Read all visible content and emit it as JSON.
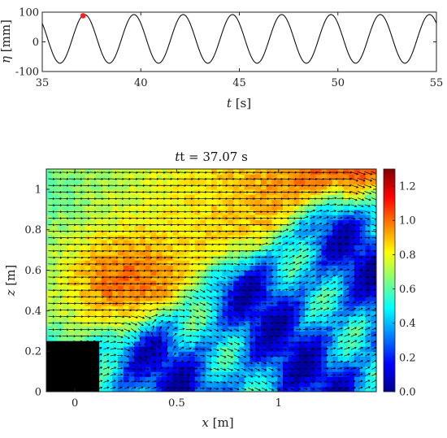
{
  "chart_data": [
    {
      "type": "line",
      "xlabel_var": "t",
      "xlabel_unit": "[s]",
      "ylabel_var": "η",
      "ylabel_unit": "[mm]",
      "xlim": [
        35,
        55
      ],
      "ylim": [
        -100,
        100
      ],
      "x_ticks": [
        "35",
        "40",
        "45",
        "50",
        "55"
      ],
      "y_ticks": [
        "-100",
        "0",
        "100"
      ],
      "wave": {
        "period_s": 2.5,
        "crest_mm": 92,
        "trough_mm": -72,
        "first_crest_t": 37.15
      },
      "marker": {
        "t": 37.07,
        "eta": 88,
        "color": "#ff2020"
      }
    },
    {
      "type": "heatmap",
      "title_prefix": "t = ",
      "title_value": "37.07 s",
      "xlabel_var": "x",
      "xlabel_unit": "[m]",
      "ylabel_var": "z",
      "ylabel_unit": "[m]",
      "xlim": [
        -0.14,
        1.48
      ],
      "ylim": [
        0,
        1.1
      ],
      "x_ticks": [
        "0",
        "0.5",
        "1"
      ],
      "y_ticks": [
        "0",
        "0.2",
        "0.4",
        "0.6",
        "0.8",
        "1"
      ],
      "colorbar": {
        "range": [
          0,
          1.3
        ],
        "ticks": [
          "0.0",
          "0.2",
          "0.4",
          "0.6",
          "0.8",
          "1.0",
          "1.2"
        ],
        "colormap": "jet"
      },
      "obstacle": {
        "x": [
          -0.14,
          0.12
        ],
        "z": [
          0,
          0.25
        ],
        "color": "#000000"
      },
      "quiver_color": "#000000"
    }
  ]
}
